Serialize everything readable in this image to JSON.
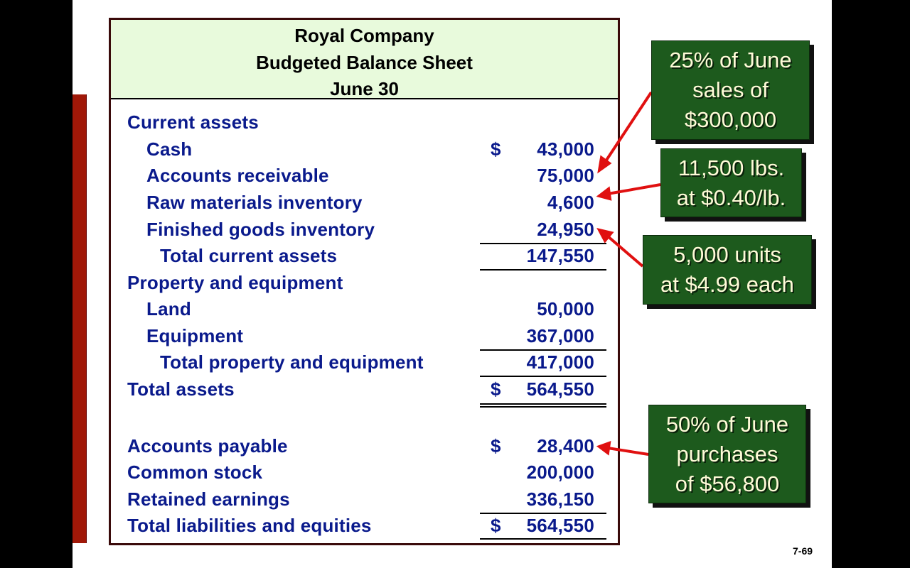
{
  "header": {
    "company": "Royal Company",
    "title": "Budgeted Balance Sheet",
    "date": "June 30"
  },
  "rows": [
    {
      "label": "Current assets",
      "dollar": "",
      "amount": ""
    },
    {
      "label": "Cash",
      "dollar": "$",
      "amount": "43,000"
    },
    {
      "label": "Accounts receivable",
      "dollar": "",
      "amount": "75,000"
    },
    {
      "label": "Raw materials inventory",
      "dollar": "",
      "amount": "4,600"
    },
    {
      "label": "Finished goods inventory",
      "dollar": "",
      "amount": "24,950"
    },
    {
      "label": "Total current assets",
      "dollar": "",
      "amount": "147,550"
    },
    {
      "label": "Property and equipment",
      "dollar": "",
      "amount": ""
    },
    {
      "label": "Land",
      "dollar": "",
      "amount": "50,000"
    },
    {
      "label": "Equipment",
      "dollar": "",
      "amount": "367,000"
    },
    {
      "label": "Total property and equipment",
      "dollar": "",
      "amount": "417,000"
    },
    {
      "label": "Total assets",
      "dollar": "$",
      "amount": "564,550"
    },
    {
      "label": "Accounts payable",
      "dollar": "$",
      "amount": "28,400"
    },
    {
      "label": "Common stock",
      "dollar": "",
      "amount": "200,000"
    },
    {
      "label": "Retained earnings",
      "dollar": "",
      "amount": "336,150"
    },
    {
      "label": "Total liabilities and equities",
      "dollar": "$",
      "amount": "564,550"
    }
  ],
  "callouts": [
    {
      "lines": [
        "25% of June",
        "sales of",
        "$300,000"
      ]
    },
    {
      "lines": [
        "11,500 lbs.",
        "at $0.40/lb."
      ]
    },
    {
      "lines": [
        "5,000 units",
        "at $4.99 each"
      ]
    },
    {
      "lines": [
        "50% of June",
        "purchases",
        "of $56,800"
      ]
    }
  ],
  "page_number": "7-69",
  "colors": {
    "table_text": "#0a1a8c",
    "header_bg": "#e8fadc",
    "callout_bg": "#1d5a1d",
    "arrow": "#e01010",
    "side_bar": "#a01808"
  }
}
